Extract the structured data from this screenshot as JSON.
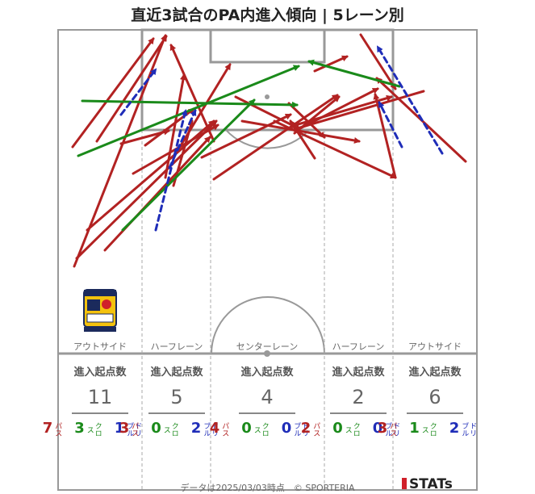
{
  "title": "直近3試合のPA内進入傾向 | 5レーン別",
  "lanes": [
    {
      "label": "アウトサイド",
      "header": "進入起点数",
      "total": "11",
      "pass": "7",
      "cross": "3",
      "dribble": "1"
    },
    {
      "label": "ハーフレーン",
      "header": "進入起点数",
      "total": "5",
      "pass": "3",
      "cross": "0",
      "dribble": "2"
    },
    {
      "label": "センターレーン",
      "header": "進入起点数",
      "total": "4",
      "pass": "4",
      "cross": "0",
      "dribble": "0"
    },
    {
      "label": "ハーフレーン",
      "header": "進入起点数",
      "total": "2",
      "pass": "2",
      "cross": "0",
      "dribble": "0"
    },
    {
      "label": "アウトサイド",
      "header": "進入起点数",
      "total": "6",
      "pass": "3",
      "cross": "1",
      "dribble": "2"
    }
  ],
  "legend": {
    "pass": "パス",
    "cross": "クロス",
    "dribble": "ドリブル"
  },
  "colors": {
    "pass": "#b22222",
    "cross": "#1a8a1a",
    "dribble": "#1f2db8"
  },
  "footer": "データは2025/03/03時点　© SPORTERIA",
  "brand": "STATs",
  "logo_text": {
    "top": "TOCHIGI SC",
    "bottom": "MIYAGI"
  }
}
